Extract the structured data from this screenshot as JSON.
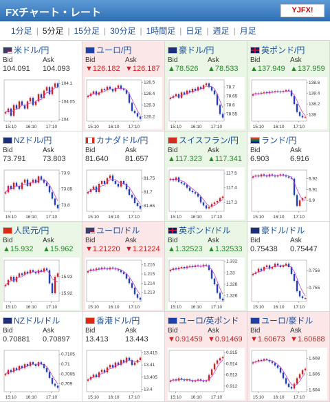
{
  "header": {
    "title": "FXチャート・レート",
    "logo_text": "YJFX!"
  },
  "tabs": [
    {
      "label": "1分足"
    },
    {
      "label": "5分足",
      "active": true
    },
    {
      "label": "15分足"
    },
    {
      "label": "30分足"
    },
    {
      "label": "1時間足"
    },
    {
      "label": "日足"
    },
    {
      "label": "週足"
    },
    {
      "label": "月足"
    }
  ],
  "labels": {
    "bid": "Bid",
    "ask": "Ask"
  },
  "colors": {
    "up": "#2a8a2a",
    "down": "#cc2222",
    "candle_up": "#d62020",
    "candle_down": "#1e3fc0",
    "ma": "#c83cc8"
  },
  "x_ticks": [
    "15:10",
    "16:10",
    "17:10"
  ],
  "pairs": [
    {
      "name": "米ドル/円",
      "flag": "us",
      "dir": "flat",
      "bid": "104.091",
      "ask": "104.093",
      "yticks": [
        "104.1",
        "104.05",
        "104"
      ],
      "chart_data": {
        "type": "line",
        "close": [
          104.02,
          104.03,
          104.01,
          104.04,
          104.03,
          104.05,
          104.04,
          104.03,
          104.05,
          104.06,
          104.04,
          104.05,
          104.07,
          104.06,
          104.08,
          104.09,
          104.07,
          104.09,
          104.1,
          104.09
        ],
        "ylim": [
          103.995,
          104.11
        ]
      }
    },
    {
      "name": "ユーロ/円",
      "flag": "eu",
      "dir": "down",
      "bid": "126.182",
      "ask": "126.187",
      "yticks": [
        "126.5",
        "126.4",
        "126.3",
        "126.2"
      ],
      "chart_data": {
        "type": "line",
        "close": [
          126.38,
          126.4,
          126.42,
          126.39,
          126.41,
          126.44,
          126.43,
          126.46,
          126.44,
          126.42,
          126.45,
          126.47,
          126.44,
          126.43,
          126.4,
          126.32,
          126.25,
          126.23,
          126.2,
          126.18
        ],
        "ylim": [
          126.16,
          126.52
        ]
      }
    },
    {
      "name": "豪ドル/円",
      "flag": "au",
      "dir": "up",
      "bid": "78.526",
      "ask": "78.533",
      "yticks": [
        "78.7",
        "78.65",
        "78.6",
        "78.55"
      ],
      "chart_data": {
        "type": "line",
        "close": [
          78.64,
          78.65,
          78.66,
          78.64,
          78.67,
          78.66,
          78.68,
          78.67,
          78.69,
          78.68,
          78.7,
          78.69,
          78.71,
          78.72,
          78.7,
          78.68,
          78.66,
          78.6,
          78.55,
          78.53
        ],
        "ylim": [
          78.51,
          78.74
        ]
      }
    },
    {
      "name": "英ポンド/円",
      "flag": "gb",
      "dir": "up",
      "bid": "137.949",
      "ask": "137.959",
      "yticks": [
        "138.6",
        "138.4",
        "138.2",
        "138"
      ],
      "chart_data": {
        "type": "line",
        "close": [
          138.38,
          138.4,
          138.39,
          138.41,
          138.42,
          138.4,
          138.43,
          138.42,
          138.44,
          138.43,
          138.42,
          138.44,
          138.46,
          138.45,
          138.35,
          138.2,
          138.05,
          137.98,
          137.95,
          137.96
        ],
        "ylim": [
          137.88,
          138.65
        ]
      }
    },
    {
      "name": "NZドル/円",
      "flag": "nz",
      "dir": "flat",
      "bid": "73.791",
      "ask": "73.803",
      "yticks": [
        "73.9",
        "73.85",
        "73.8"
      ],
      "chart_data": {
        "type": "line",
        "close": [
          73.84,
          73.86,
          73.85,
          73.87,
          73.86,
          73.85,
          73.87,
          73.88,
          73.86,
          73.87,
          73.88,
          73.87,
          73.89,
          73.88,
          73.87,
          73.86,
          73.84,
          73.82,
          73.8,
          73.79
        ],
        "ylim": [
          73.78,
          73.91
        ]
      }
    },
    {
      "name": "カナダドル/円",
      "flag": "ca",
      "dir": "flat",
      "bid": "81.640",
      "ask": "81.657",
      "yticks": [
        "81.75",
        "81.7",
        "81.65"
      ],
      "chart_data": {
        "type": "line",
        "close": [
          81.7,
          81.71,
          81.72,
          81.7,
          81.73,
          81.74,
          81.73,
          81.75,
          81.76,
          81.74,
          81.73,
          81.72,
          81.74,
          81.73,
          81.71,
          81.69,
          81.68,
          81.66,
          81.65,
          81.64
        ],
        "ylim": [
          81.63,
          81.78
        ]
      }
    },
    {
      "name": "スイスフラン/円",
      "flag": "ch",
      "dir": "up",
      "bid": "117.323",
      "ask": "117.341",
      "yticks": [
        "117.5",
        "117.4",
        "117.3"
      ],
      "chart_data": {
        "type": "line",
        "close": [
          117.46,
          117.45,
          117.47,
          117.44,
          117.43,
          117.42,
          117.4,
          117.38,
          117.37,
          117.36,
          117.34,
          117.3,
          117.28,
          117.26,
          117.27,
          117.29,
          117.3,
          117.31,
          117.33,
          117.34
        ],
        "ylim": [
          117.24,
          117.52
        ]
      }
    },
    {
      "name": "ランド/円",
      "flag": "za",
      "dir": "flat",
      "bid": "6.903",
      "ask": "6.916",
      "yticks": [
        "6.92",
        "6.91",
        "6.9"
      ],
      "chart_data": {
        "type": "line",
        "close": [
          6.922,
          6.923,
          6.922,
          6.924,
          6.923,
          6.922,
          6.924,
          6.923,
          6.922,
          6.923,
          6.924,
          6.923,
          6.922,
          6.921,
          6.92,
          6.905,
          6.895,
          6.9,
          6.902,
          6.903
        ],
        "ylim": [
          6.89,
          6.928
        ]
      }
    },
    {
      "name": "人民元/円",
      "flag": "cn",
      "dir": "up",
      "bid": "15.932",
      "ask": "15.962",
      "yticks": [
        "15.93",
        "15.92"
      ],
      "chart_data": {
        "type": "line",
        "close": [
          15.925,
          15.928,
          15.93,
          15.927,
          15.93,
          15.932,
          15.931,
          15.933,
          15.932,
          15.934,
          15.933,
          15.932,
          15.934,
          15.933,
          15.935,
          15.934,
          15.926,
          15.92,
          15.93,
          15.932
        ],
        "ylim": [
          15.915,
          15.94
        ]
      }
    },
    {
      "name": "ユーロ/ドル",
      "flag": "us",
      "dir": "down",
      "bid": "1.21220",
      "ask": "1.21224",
      "yticks": [
        "1.216",
        "1.215",
        "1.214",
        "1.213"
      ],
      "chart_data": {
        "type": "line",
        "close": [
          1.2153,
          1.2155,
          1.2154,
          1.2156,
          1.2155,
          1.2157,
          1.2156,
          1.2155,
          1.2157,
          1.2156,
          1.2155,
          1.2154,
          1.2152,
          1.215,
          1.2145,
          1.214,
          1.2135,
          1.2128,
          1.2124,
          1.2122
        ],
        "ylim": [
          1.212,
          1.2165
        ]
      }
    },
    {
      "name": "英ポンド/ドル",
      "flag": "gb",
      "dir": "up",
      "bid": "1.32523",
      "ask": "1.32533",
      "yticks": [
        "1.332",
        "1.33",
        "1.328",
        "1.326"
      ],
      "chart_data": {
        "type": "line",
        "close": [
          1.3305,
          1.3308,
          1.3306,
          1.3309,
          1.331,
          1.3308,
          1.3311,
          1.3312,
          1.331,
          1.3313,
          1.3312,
          1.3311,
          1.3314,
          1.3313,
          1.3305,
          1.329,
          1.328,
          1.3265,
          1.3255,
          1.3252
        ],
        "ylim": [
          1.325,
          1.3322
        ]
      }
    },
    {
      "name": "豪ドル/ドル",
      "flag": "au",
      "dir": "flat",
      "bid": "0.75438",
      "ask": "0.75447",
      "yticks": [
        "0.756",
        "0.755"
      ],
      "chart_data": {
        "type": "line",
        "close": [
          0.7558,
          0.7559,
          0.7561,
          0.756,
          0.7562,
          0.7563,
          0.7561,
          0.7562,
          0.7564,
          0.7563,
          0.7562,
          0.7563,
          0.7564,
          0.7562,
          0.7558,
          0.7554,
          0.7548,
          0.7545,
          0.7544,
          0.7544
        ],
        "ylim": [
          0.7542,
          0.7566
        ]
      }
    },
    {
      "name": "NZドル/ドル",
      "flag": "nz",
      "dir": "flat",
      "bid": "0.70881",
      "ask": "0.70897",
      "yticks": [
        "0.7105",
        "0.71",
        "0.7095",
        "0.709"
      ],
      "chart_data": {
        "type": "line",
        "close": [
          0.7095,
          0.7097,
          0.7096,
          0.7098,
          0.7097,
          0.7099,
          0.7098,
          0.71,
          0.7099,
          0.7101,
          0.71,
          0.7099,
          0.7101,
          0.71,
          0.7098,
          0.7096,
          0.7093,
          0.709,
          0.7089,
          0.7088
        ],
        "ylim": [
          0.7086,
          0.7107
        ]
      }
    },
    {
      "name": "香港ドル/円",
      "flag": "hk",
      "dir": "flat",
      "bid": "13.413",
      "ask": "13.443",
      "yticks": [
        "13.415",
        "13.41",
        "13.405",
        "13.4"
      ],
      "chart_data": {
        "type": "line",
        "close": [
          13.404,
          13.405,
          13.406,
          13.405,
          13.407,
          13.408,
          13.407,
          13.409,
          13.41,
          13.409,
          13.411,
          13.41,
          13.412,
          13.411,
          13.413,
          13.412,
          13.41,
          13.411,
          13.412,
          13.413
        ],
        "ylim": [
          13.399,
          13.416
        ]
      }
    },
    {
      "name": "ユーロ/英ポンド",
      "flag": "eu",
      "dir": "down",
      "bid": "0.91459",
      "ask": "0.91469",
      "yticks": [
        "0.915",
        "0.914",
        "0.913",
        "0.912"
      ],
      "chart_data": {
        "type": "line",
        "close": [
          0.9125,
          0.9126,
          0.9125,
          0.9127,
          0.9126,
          0.9125,
          0.9126,
          0.9125,
          0.9124,
          0.9125,
          0.9126,
          0.9125,
          0.9124,
          0.9125,
          0.913,
          0.9135,
          0.914,
          0.9143,
          0.9145,
          0.9146
        ],
        "ylim": [
          0.9115,
          0.9152
        ]
      }
    },
    {
      "name": "ユーロ/豪ドル",
      "flag": "eu",
      "dir": "down",
      "bid": "1.60673",
      "ask": "1.60688",
      "yticks": [
        "1.608",
        "1.606",
        "1.604"
      ],
      "chart_data": {
        "type": "line",
        "close": [
          1.6075,
          1.6076,
          1.6078,
          1.6077,
          1.6079,
          1.6078,
          1.6076,
          1.6074,
          1.6071,
          1.6068,
          1.6062,
          1.6055,
          1.6048,
          1.6044,
          1.6042,
          1.6048,
          1.6055,
          1.606,
          1.6065,
          1.6067
        ],
        "ylim": [
          1.6038,
          1.609
        ]
      }
    }
  ]
}
